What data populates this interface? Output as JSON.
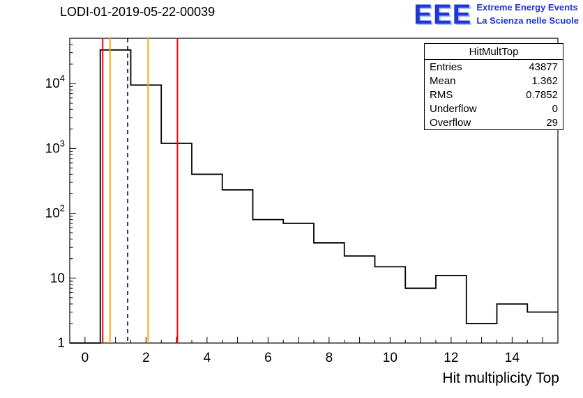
{
  "title": "LODI-01-2019-05-22-00039",
  "logo": {
    "acronym": "EEE",
    "line1": "Extreme Energy Events",
    "line2": "La Scienza nelle Scuole",
    "color": "#2236d4"
  },
  "stats": {
    "title": "HitMultTop",
    "rows": [
      {
        "label": "Entries",
        "value": "43877"
      },
      {
        "label": "Mean",
        "value": "1.362"
      },
      {
        "label": "RMS",
        "value": "0.7852"
      },
      {
        "label": "Underflow",
        "value": "0"
      },
      {
        "label": "Overflow",
        "value": "29"
      }
    ]
  },
  "chart_data": {
    "type": "bar",
    "title": "LODI-01-2019-05-22-00039",
    "xlabel": "Hit multiplicity Top",
    "ylabel": "",
    "y_scale": "log",
    "xlim": [
      -0.5,
      15.5
    ],
    "ylim": [
      1,
      50000
    ],
    "x_ticks": [
      0,
      2,
      4,
      6,
      8,
      10,
      12,
      14
    ],
    "y_ticks": [
      "1",
      "10",
      "10^2",
      "10^3",
      "10^4"
    ],
    "grid": false,
    "legend": "none",
    "bin_width": 1,
    "bin_centers": [
      0,
      1,
      2,
      3,
      4,
      5,
      6,
      7,
      8,
      9,
      10,
      11,
      12,
      13,
      14,
      15
    ],
    "counts": [
      0,
      33000,
      9500,
      1200,
      400,
      230,
      80,
      70,
      35,
      22,
      15,
      7,
      11,
      2,
      4,
      3
    ],
    "line_color": "#000000",
    "marker_lines": [
      {
        "x": 0.58,
        "color": "#ff0000",
        "style": "solid"
      },
      {
        "x": 0.82,
        "color": "#ffaa00",
        "style": "solid"
      },
      {
        "x": 1.4,
        "color": "#000000",
        "style": "dashed"
      },
      {
        "x": 2.07,
        "color": "#ffaa00",
        "style": "solid"
      },
      {
        "x": 3.03,
        "color": "#ff0000",
        "style": "solid"
      }
    ]
  }
}
